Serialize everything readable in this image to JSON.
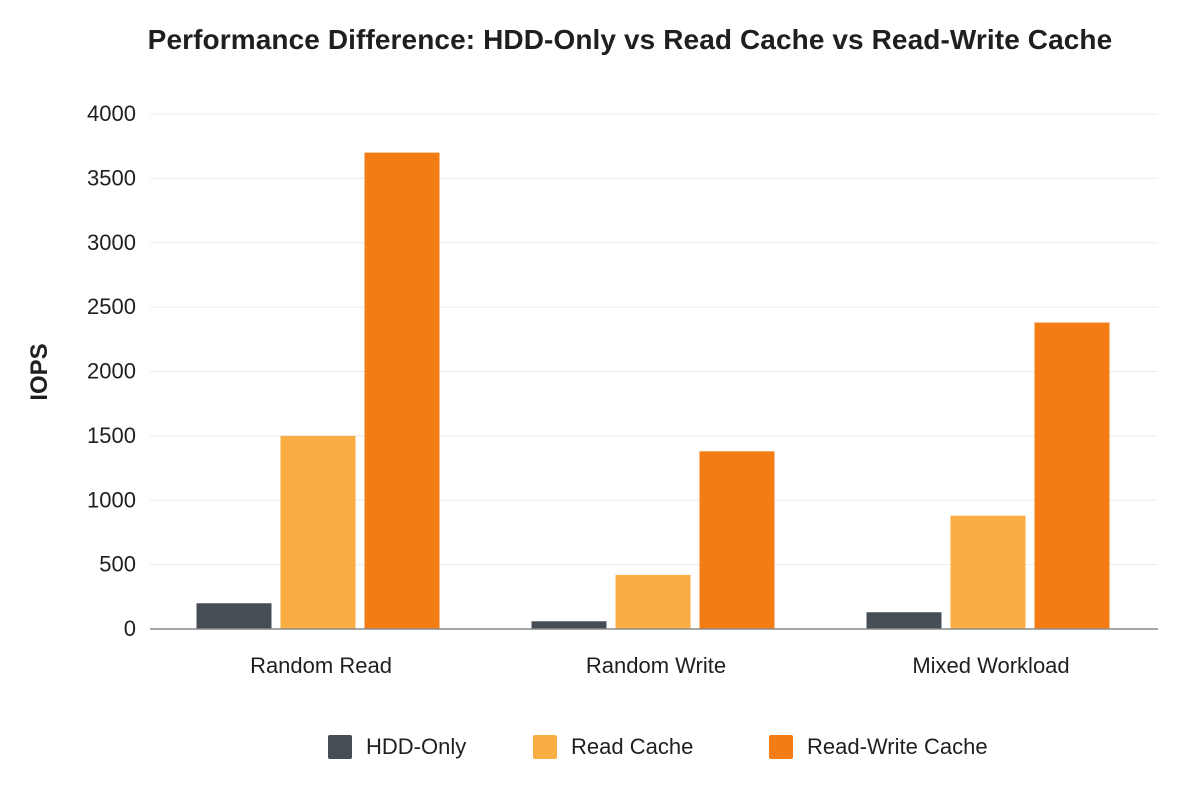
{
  "chart_data": {
    "type": "bar",
    "title": "Performance Difference: HDD-Only vs Read Cache vs Read-Write Cache",
    "xlabel": "",
    "ylabel": "IOPS",
    "ylim": [
      0,
      4000
    ],
    "yticks": [
      0,
      500,
      1000,
      1500,
      2000,
      2500,
      3000,
      3500,
      4000
    ],
    "grid": true,
    "legend_position": "bottom",
    "categories": [
      "Random Read",
      "Random Write",
      "Mixed Workload"
    ],
    "series": [
      {
        "name": "HDD-Only",
        "color": "#474d55",
        "values": [
          200,
          60,
          130
        ]
      },
      {
        "name": "Read Cache",
        "color": "#f9ad42",
        "values": [
          1500,
          420,
          880
        ]
      },
      {
        "name": "Read-Write Cache",
        "color": "#f47c14",
        "values": [
          3700,
          1380,
          2380
        ]
      }
    ]
  }
}
